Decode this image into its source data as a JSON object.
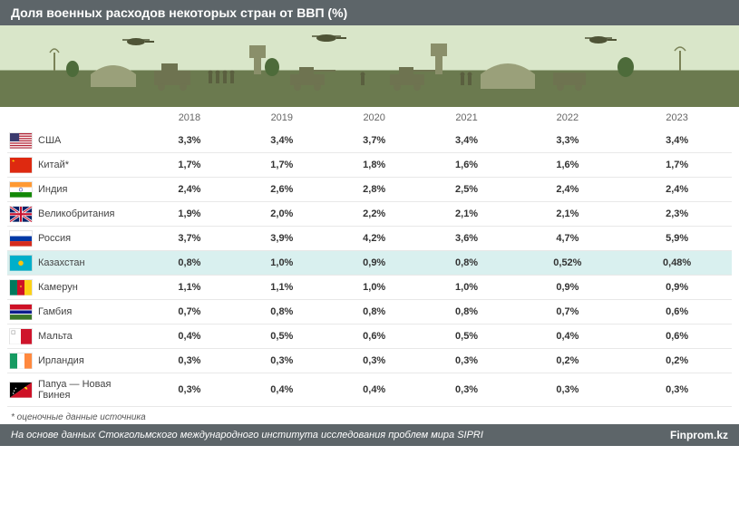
{
  "title": "Доля военных расходов некоторых стран от ВВП (%)",
  "years": [
    "2018",
    "2019",
    "2020",
    "2021",
    "2022",
    "2023"
  ],
  "highlight_index": 5,
  "colors": {
    "header_bg": "#5d6569",
    "header_text": "#ffffff",
    "highlight_row": "#d9f0ef",
    "row_border": "#e8e8e8",
    "text": "#333333",
    "muted": "#666666"
  },
  "table": {
    "flag_col_width": 30,
    "country_col_width": 120,
    "cell_font_size": 11,
    "cell_font_weight": "bold",
    "country_font_weight": "normal"
  },
  "rows": [
    {
      "country": "США",
      "flag": "us",
      "values": [
        "3,3%",
        "3,4%",
        "3,7%",
        "3,4%",
        "3,3%",
        "3,4%"
      ]
    },
    {
      "country": "Китай*",
      "flag": "cn",
      "values": [
        "1,7%",
        "1,7%",
        "1,8%",
        "1,6%",
        "1,6%",
        "1,7%"
      ]
    },
    {
      "country": "Индия",
      "flag": "in",
      "values": [
        "2,4%",
        "2,6%",
        "2,8%",
        "2,5%",
        "2,4%",
        "2,4%"
      ]
    },
    {
      "country": "Великобритания",
      "flag": "uk",
      "values": [
        "1,9%",
        "2,0%",
        "2,2%",
        "2,1%",
        "2,1%",
        "2,3%"
      ]
    },
    {
      "country": "Россия",
      "flag": "ru",
      "values": [
        "3,7%",
        "3,9%",
        "4,2%",
        "3,6%",
        "4,7%",
        "5,9%"
      ]
    },
    {
      "country": "Казахстан",
      "flag": "kz",
      "values": [
        "0,8%",
        "1,0%",
        "0,9%",
        "0,8%",
        "0,52%",
        "0,48%"
      ]
    },
    {
      "country": "Камерун",
      "flag": "cm",
      "values": [
        "1,1%",
        "1,1%",
        "1,0%",
        "1,0%",
        "0,9%",
        "0,9%"
      ]
    },
    {
      "country": "Гамбия",
      "flag": "gm",
      "values": [
        "0,7%",
        "0,8%",
        "0,8%",
        "0,8%",
        "0,7%",
        "0,6%"
      ]
    },
    {
      "country": "Мальта",
      "flag": "mt",
      "values": [
        "0,4%",
        "0,5%",
        "0,6%",
        "0,5%",
        "0,4%",
        "0,6%"
      ]
    },
    {
      "country": "Ирландия",
      "flag": "ie",
      "values": [
        "0,3%",
        "0,3%",
        "0,3%",
        "0,3%",
        "0,2%",
        "0,2%"
      ]
    },
    {
      "country": "Папуа — Новая Гвинея",
      "flag": "pg",
      "values": [
        "0,3%",
        "0,4%",
        "0,4%",
        "0,3%",
        "0,3%",
        "0,3%"
      ]
    }
  ],
  "footnote": "* оценочные данные источника",
  "footer": {
    "source": "На основе данных Стокгольмского международного института исследования проблем мира SIPRI",
    "brand": "Finprom.kz"
  },
  "flags": {
    "us": "<svg viewBox='0 0 26 18'><rect width='26' height='18' fill='#b22234'/><rect y='1.4' width='26' height='1.4' fill='#fff'/><rect y='4.2' width='26' height='1.4' fill='#fff'/><rect y='7' width='26' height='1.4' fill='#fff'/><rect y='9.8' width='26' height='1.4' fill='#fff'/><rect y='12.6' width='26' height='1.4' fill='#fff'/><rect y='15.4' width='26' height='1.4' fill='#fff'/><rect width='11' height='9.8' fill='#3c3b6e'/></svg>",
    "cn": "<svg viewBox='0 0 26 18'><rect width='26' height='18' fill='#de2910'/><polygon points='4,2 5,5 2,3.2 6,3.2 3,5' fill='#ffde00'/></svg>",
    "in": "<svg viewBox='0 0 26 18'><rect width='26' height='6' fill='#ff9933'/><rect y='6' width='26' height='6' fill='#fff'/><rect y='12' width='26' height='6' fill='#138808'/><circle cx='13' cy='9' r='2' fill='none' stroke='#000080' stroke-width='0.5'/></svg>",
    "uk": "<svg viewBox='0 0 26 18'><rect width='26' height='18' fill='#012169'/><path d='M0,0 L26,18 M26,0 L0,18' stroke='#fff' stroke-width='3'/><path d='M0,0 L26,18 M26,0 L0,18' stroke='#c8102e' stroke-width='1.2'/><rect x='11' width='4' height='18' fill='#fff'/><rect y='7' width='26' height='4' fill='#fff'/><rect x='11.8' width='2.4' height='18' fill='#c8102e'/><rect y='7.8' width='26' height='2.4' fill='#c8102e'/></svg>",
    "ru": "<svg viewBox='0 0 26 18'><rect width='26' height='6' fill='#fff'/><rect y='6' width='26' height='6' fill='#0039a6'/><rect y='12' width='26' height='6' fill='#d52b1e'/></svg>",
    "kz": "<svg viewBox='0 0 26 18'><rect width='26' height='18' fill='#00afca'/><circle cx='13' cy='9' r='3' fill='#fec50c'/></svg>",
    "cm": "<svg viewBox='0 0 26 18'><rect width='8.67' height='18' fill='#007a5e'/><rect x='8.67' width='8.67' height='18' fill='#ce1126'/><rect x='17.33' width='8.67' height='18' fill='#fcd116'/><polygon points='13,6 14,9 11.5,7.2 14.5,7.2 12,9' fill='#fcd116'/></svg>",
    "gm": "<svg viewBox='0 0 26 18'><rect width='26' height='6' fill='#ce1126'/><rect y='6' width='26' height='1' fill='#fff'/><rect y='7' width='26' height='4' fill='#0c1c8c'/><rect y='11' width='26' height='1' fill='#fff'/><rect y='12' width='26' height='6' fill='#3a7728'/></svg>",
    "mt": "<svg viewBox='0 0 26 18'><rect width='13' height='18' fill='#fff'/><rect x='13' width='13' height='18' fill='#cf142b'/><rect x='2' y='2' width='4' height='4' fill='none' stroke='#999' stroke-width='0.6'/></svg>",
    "ie": "<svg viewBox='0 0 26 18'><rect width='8.67' height='18' fill='#169b62'/><rect x='8.67' width='8.67' height='18' fill='#fff'/><rect x='17.33' width='8.67' height='18' fill='#ff883e'/></svg>",
    "pg": "<svg viewBox='0 0 26 18'><polygon points='0,0 26,0 0,18' fill='#000'/><polygon points='26,0 26,18 0,18' fill='#ce1126'/><circle cx='5' cy='10' r='0.8' fill='#fff'/><circle cx='7' cy='7' r='0.8' fill='#fff'/><circle cx='4' cy='13' r='0.8' fill='#fff'/><path d='M17,6 Q20,4 21,8 Q19,9 17,6' fill='#fcd116'/></svg>"
  }
}
